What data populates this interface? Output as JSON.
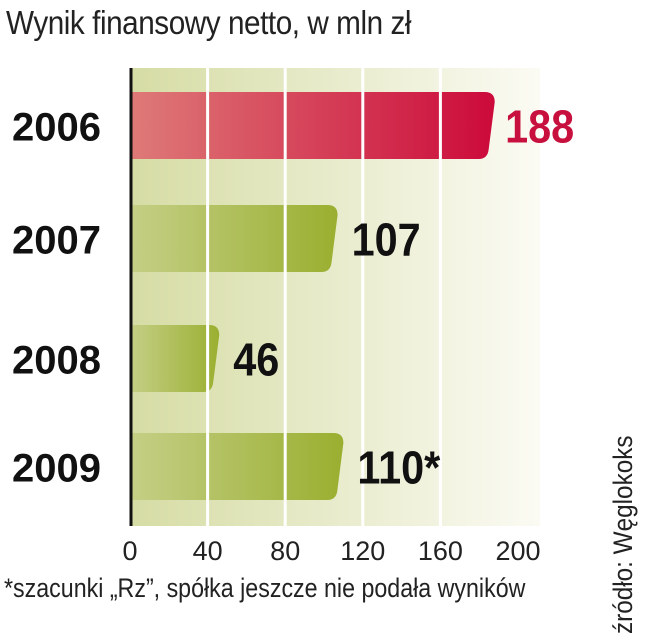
{
  "chart_data": {
    "type": "bar",
    "orientation": "horizontal",
    "title": "Wynik finansowy netto, w mln zł",
    "categories": [
      "2006",
      "2007",
      "2008",
      "2009"
    ],
    "values": [
      188,
      107,
      46,
      110
    ],
    "value_labels": [
      "188",
      "107",
      "46",
      "110*"
    ],
    "highlight_index": 0,
    "xlim": [
      0,
      200
    ],
    "xticks": [
      "0",
      "40",
      "80",
      "120",
      "160",
      "200"
    ],
    "grid": true,
    "footnote": "*szacunki „Rz”, spółka jeszcze nie podała wyników",
    "source": "źródło: Węglokoks",
    "colors": {
      "highlight": "#cc0a3a",
      "bar": "#9aaf30",
      "label_highlight": "#c8103e",
      "label": "#111111"
    }
  }
}
